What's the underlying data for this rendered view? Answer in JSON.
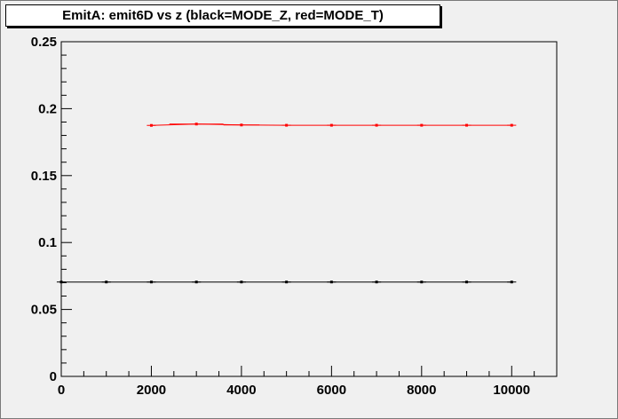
{
  "chart_data": {
    "type": "line",
    "title": "EmitA: emit6D vs z  (black=MODE_Z, red=MODE_T)",
    "xlabel": "",
    "ylabel": "",
    "xlim": [
      0,
      11000
    ],
    "ylim": [
      0,
      0.25
    ],
    "x_ticks": [
      0,
      2000,
      4000,
      6000,
      8000,
      10000
    ],
    "y_ticks": [
      0,
      0.05,
      0.1,
      0.15,
      0.2,
      0.25
    ],
    "x_tick_labels": [
      "0",
      "2000",
      "4000",
      "6000",
      "8000",
      "10000"
    ],
    "y_tick_labels": [
      "0",
      "0.05",
      "0.1",
      "0.15",
      "0.2",
      "0.25"
    ],
    "grid": false,
    "series": [
      {
        "color": "#000000",
        "x": [
          0,
          1000,
          2000,
          3000,
          4000,
          5000,
          6000,
          7000,
          8000,
          9000,
          10000
        ],
        "y": [
          0.0705,
          0.0705,
          0.0705,
          0.0705,
          0.0705,
          0.0705,
          0.0705,
          0.0705,
          0.0705,
          0.0705,
          0.0705
        ],
        "x_err": [
          100,
          100,
          100,
          100,
          100,
          100,
          100,
          100,
          100,
          100,
          100
        ]
      },
      {
        "color": "#ff0000",
        "x": [
          2000,
          3000,
          4000,
          5000,
          6000,
          7000,
          8000,
          9000,
          10000
        ],
        "y": [
          0.1875,
          0.1885,
          0.1878,
          0.1876,
          0.1876,
          0.1876,
          0.1876,
          0.1876,
          0.1876
        ],
        "x_err": [
          100,
          600,
          400,
          100,
          100,
          100,
          100,
          100,
          100
        ]
      }
    ]
  },
  "colors": {
    "frame_background": "#f0f0f0",
    "axis": "#000000",
    "mode_z": "#000000",
    "mode_t": "#ff0000"
  }
}
